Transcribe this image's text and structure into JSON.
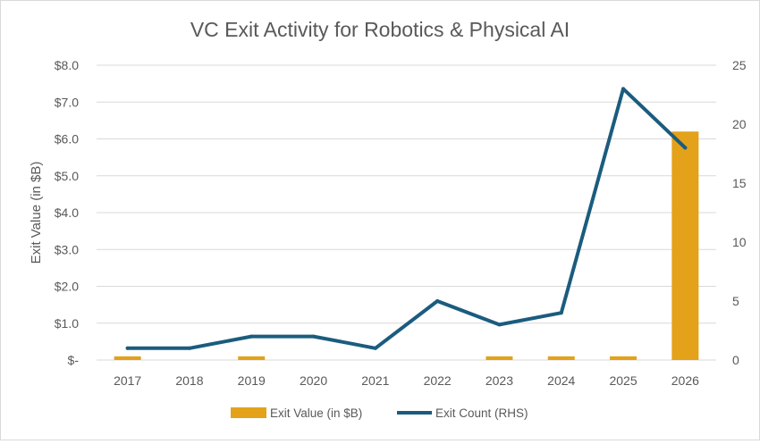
{
  "chart_data": {
    "type": "bar+line",
    "title": "VC Exit Activity for Robotics & Physical AI",
    "ylabel": "Exit Value (in $B)",
    "y2label": "",
    "categories": [
      "2017",
      "2018",
      "2019",
      "2020",
      "2021",
      "2022",
      "2023",
      "2024",
      "2025",
      "2026"
    ],
    "ylim": [
      0,
      8
    ],
    "y2lim": [
      0,
      25
    ],
    "yticks": [
      "$-",
      "$1.0",
      "$2.0",
      "$3.0",
      "$4.0",
      "$5.0",
      "$6.0",
      "$7.0",
      "$8.0"
    ],
    "y2ticks": [
      "0",
      "5",
      "10",
      "15",
      "20",
      "25"
    ],
    "grid": true,
    "legend_position": "bottom",
    "series": [
      {
        "name": "Exit Value (in $B)",
        "type": "bar",
        "axis": "left",
        "color": "#E3A21A",
        "values": [
          0.1,
          0,
          0.1,
          0,
          0,
          0,
          0.1,
          0.1,
          0.1,
          6.2
        ]
      },
      {
        "name": "Exit Count (RHS)",
        "type": "line",
        "axis": "right",
        "color": "#1B5C7E",
        "values": [
          1,
          1,
          2,
          2,
          1,
          5,
          3,
          4,
          23,
          18
        ]
      }
    ]
  }
}
